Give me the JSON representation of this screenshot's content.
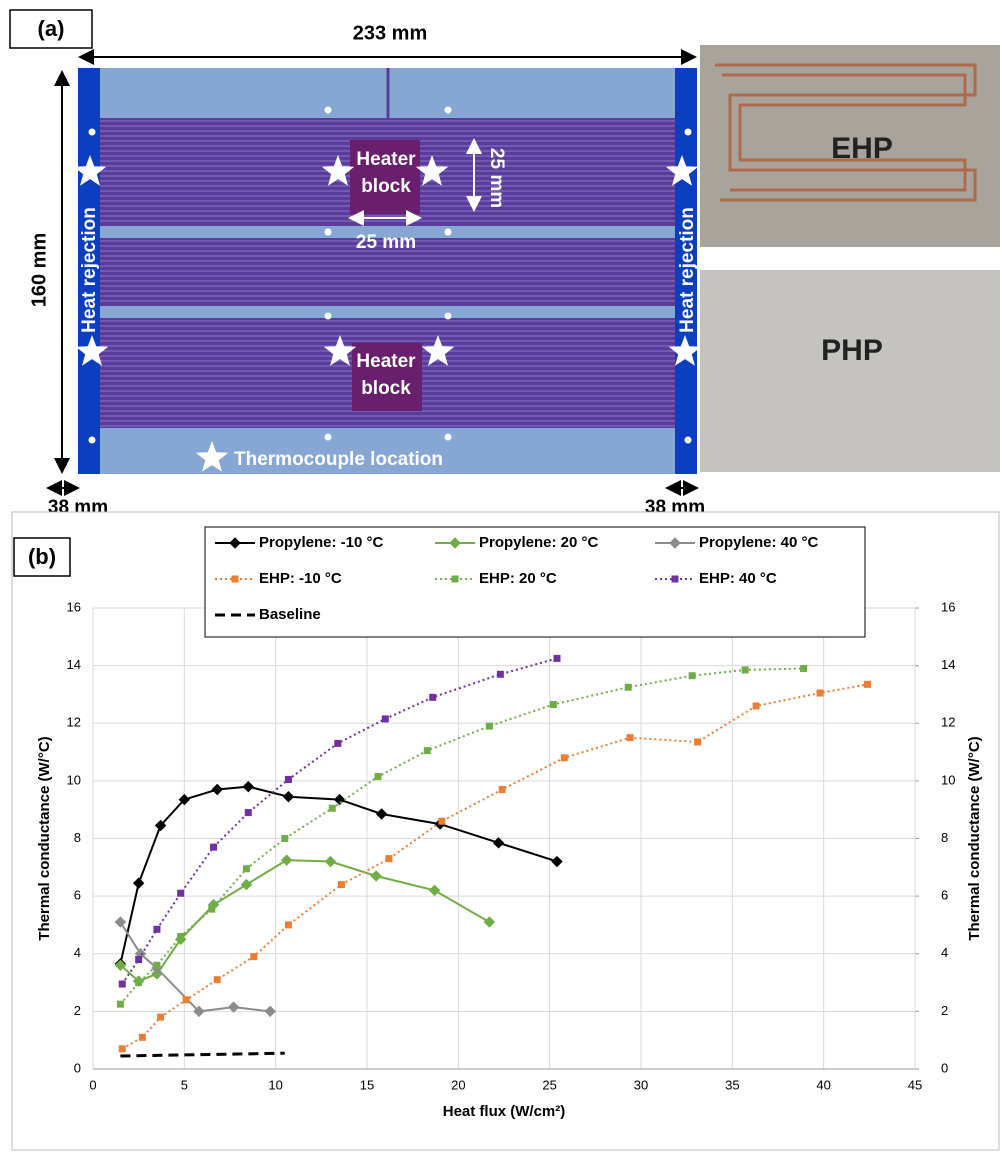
{
  "panel_a": {
    "label": "(a)",
    "width_dim": "233 mm",
    "height_dim": "160 mm",
    "block_height_dim": "25 mm",
    "block_width_dim": "25 mm",
    "edge_dim_left": "38 mm",
    "edge_dim_right": "38 mm",
    "heat_rejection": "Heat rejection",
    "heater_block": [
      "Heater",
      "block"
    ],
    "thermocouple": "Thermocouple location",
    "photo_top": "EHP",
    "photo_bottom": "PHP"
  },
  "panel_b": {
    "label": "(b)"
  },
  "chart_data": {
    "type": "line",
    "xlabel": "Heat flux (W/cm²)",
    "ylabel": "Thermal conductance (W/°C)",
    "y2label": "Thermal conductance (W/°C)",
    "xlim": [
      0,
      45
    ],
    "xticks": [
      0,
      5,
      10,
      15,
      20,
      25,
      30,
      35,
      40,
      45
    ],
    "ylim": [
      0,
      16
    ],
    "yticks": [
      0,
      2,
      4,
      6,
      8,
      10,
      12,
      14,
      16
    ],
    "y2lim": [
      0,
      16
    ],
    "y2ticks": [
      0,
      2,
      4,
      6,
      8,
      10,
      12,
      14,
      16
    ],
    "grid": true,
    "series": [
      {
        "name": "Propylene: -10 °C",
        "color": "#000000",
        "line_style": "solid",
        "marker": "diamond",
        "x": [
          1.5,
          2.5,
          3.7,
          5,
          6.8,
          8.5,
          10.7,
          13.5,
          15.8,
          19,
          22.2,
          25.4
        ],
        "values": [
          3.65,
          6.45,
          8.45,
          9.35,
          9.7,
          9.8,
          9.45,
          9.35,
          8.85,
          8.5,
          7.85,
          7.2
        ]
      },
      {
        "name": "Propylene: 20 °C",
        "color": "#70ad47",
        "line_style": "solid",
        "marker": "diamond",
        "x": [
          1.5,
          2.5,
          3.5,
          4.8,
          6.6,
          8.4,
          10.6,
          13,
          15.5,
          18.7,
          21.7
        ],
        "values": [
          3.6,
          3.05,
          3.3,
          4.5,
          5.7,
          6.4,
          7.25,
          7.2,
          6.7,
          6.2,
          5.1
        ]
      },
      {
        "name": "Propylene: 40 °C",
        "color": "#8c8c8c",
        "line_style": "solid",
        "marker": "diamond",
        "x": [
          1.5,
          2.6,
          3.5,
          5.8,
          7.7,
          9.7
        ],
        "values": [
          5.1,
          4.0,
          3.5,
          2.0,
          2.15,
          2.0
        ]
      },
      {
        "name": "EHP: -10 °C",
        "color": "#ed7d31",
        "line_style": "dotted",
        "marker": "square",
        "x": [
          1.6,
          2.7,
          3.7,
          5.1,
          6.8,
          8.8,
          10.7,
          13.6,
          16.2,
          19.1,
          22.4,
          25.8,
          29.4,
          33.1,
          36.3,
          39.8,
          42.4
        ],
        "values": [
          0.7,
          1.1,
          1.8,
          2.4,
          3.1,
          3.9,
          5.0,
          6.4,
          7.3,
          8.6,
          9.7,
          10.8,
          11.5,
          11.35,
          12.6,
          13.05,
          13.35
        ]
      },
      {
        "name": "EHP: 20 °C",
        "color": "#70ad47",
        "line_style": "dotted",
        "marker": "square",
        "x": [
          1.5,
          2.5,
          3.5,
          4.8,
          6.5,
          8.4,
          10.5,
          13.1,
          15.6,
          18.3,
          21.7,
          25.2,
          29.3,
          32.8,
          35.7,
          38.9
        ],
        "values": [
          2.25,
          3.0,
          3.6,
          4.6,
          5.55,
          6.95,
          8.0,
          9.05,
          10.15,
          11.05,
          11.9,
          12.65,
          13.25,
          13.65,
          13.85,
          13.9
        ]
      },
      {
        "name": "EHP: 40 °C",
        "color": "#7030a0",
        "line_style": "dotted",
        "marker": "square",
        "x": [
          1.6,
          2.5,
          3.5,
          4.8,
          6.6,
          8.5,
          10.7,
          13.4,
          16,
          18.6,
          22.3,
          25.4
        ],
        "values": [
          2.95,
          3.8,
          4.85,
          6.1,
          7.7,
          8.9,
          10.05,
          11.3,
          12.15,
          12.9,
          13.7,
          14.25
        ]
      },
      {
        "name": "Baseline",
        "color": "#000000",
        "line_style": "dashed",
        "marker": "none",
        "x": [
          1.5,
          10.5
        ],
        "values": [
          0.45,
          0.55
        ]
      }
    ]
  }
}
